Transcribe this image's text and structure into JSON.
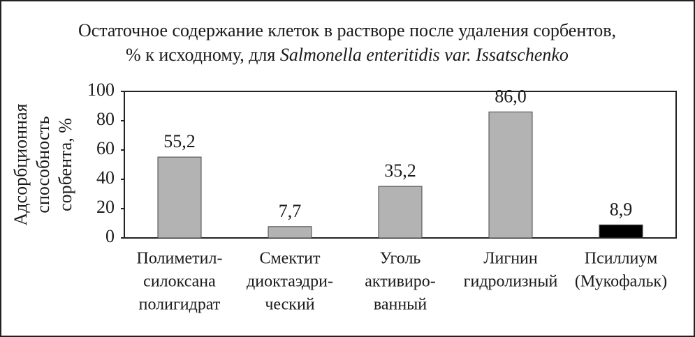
{
  "chart_data": {
    "type": "bar",
    "title_lines": [
      "Остаточное содержание клеток в растворе после удаления сорбентов,",
      "% к исходному, для ",
      "Salmonella enteritidis var. Issatschenko"
    ],
    "ylabel_lines": [
      "Адсорбционная",
      "способность",
      "сорбента, %"
    ],
    "categories": [
      [
        "Полиметил-",
        "силоксана",
        "полигидрат"
      ],
      [
        "Смектит",
        "диоктаэдри-",
        "ческий"
      ],
      [
        "Уголь",
        "активиро-",
        "ванный"
      ],
      [
        "Лигнин",
        "гидролизный"
      ],
      [
        "Псиллиум",
        "(Мукофальк)"
      ]
    ],
    "values": [
      55.2,
      7.7,
      35.2,
      86.0,
      8.9
    ],
    "value_labels": [
      "55,2",
      "7,7",
      "35,2",
      "86,0",
      "8,9"
    ],
    "colors": [
      "#b3b3b3",
      "#b3b3b3",
      "#b3b3b3",
      "#b3b3b3",
      "#000000"
    ],
    "ylim": [
      0,
      100
    ],
    "yticks": [
      0,
      20,
      40,
      60,
      80,
      100
    ],
    "grid": false
  }
}
